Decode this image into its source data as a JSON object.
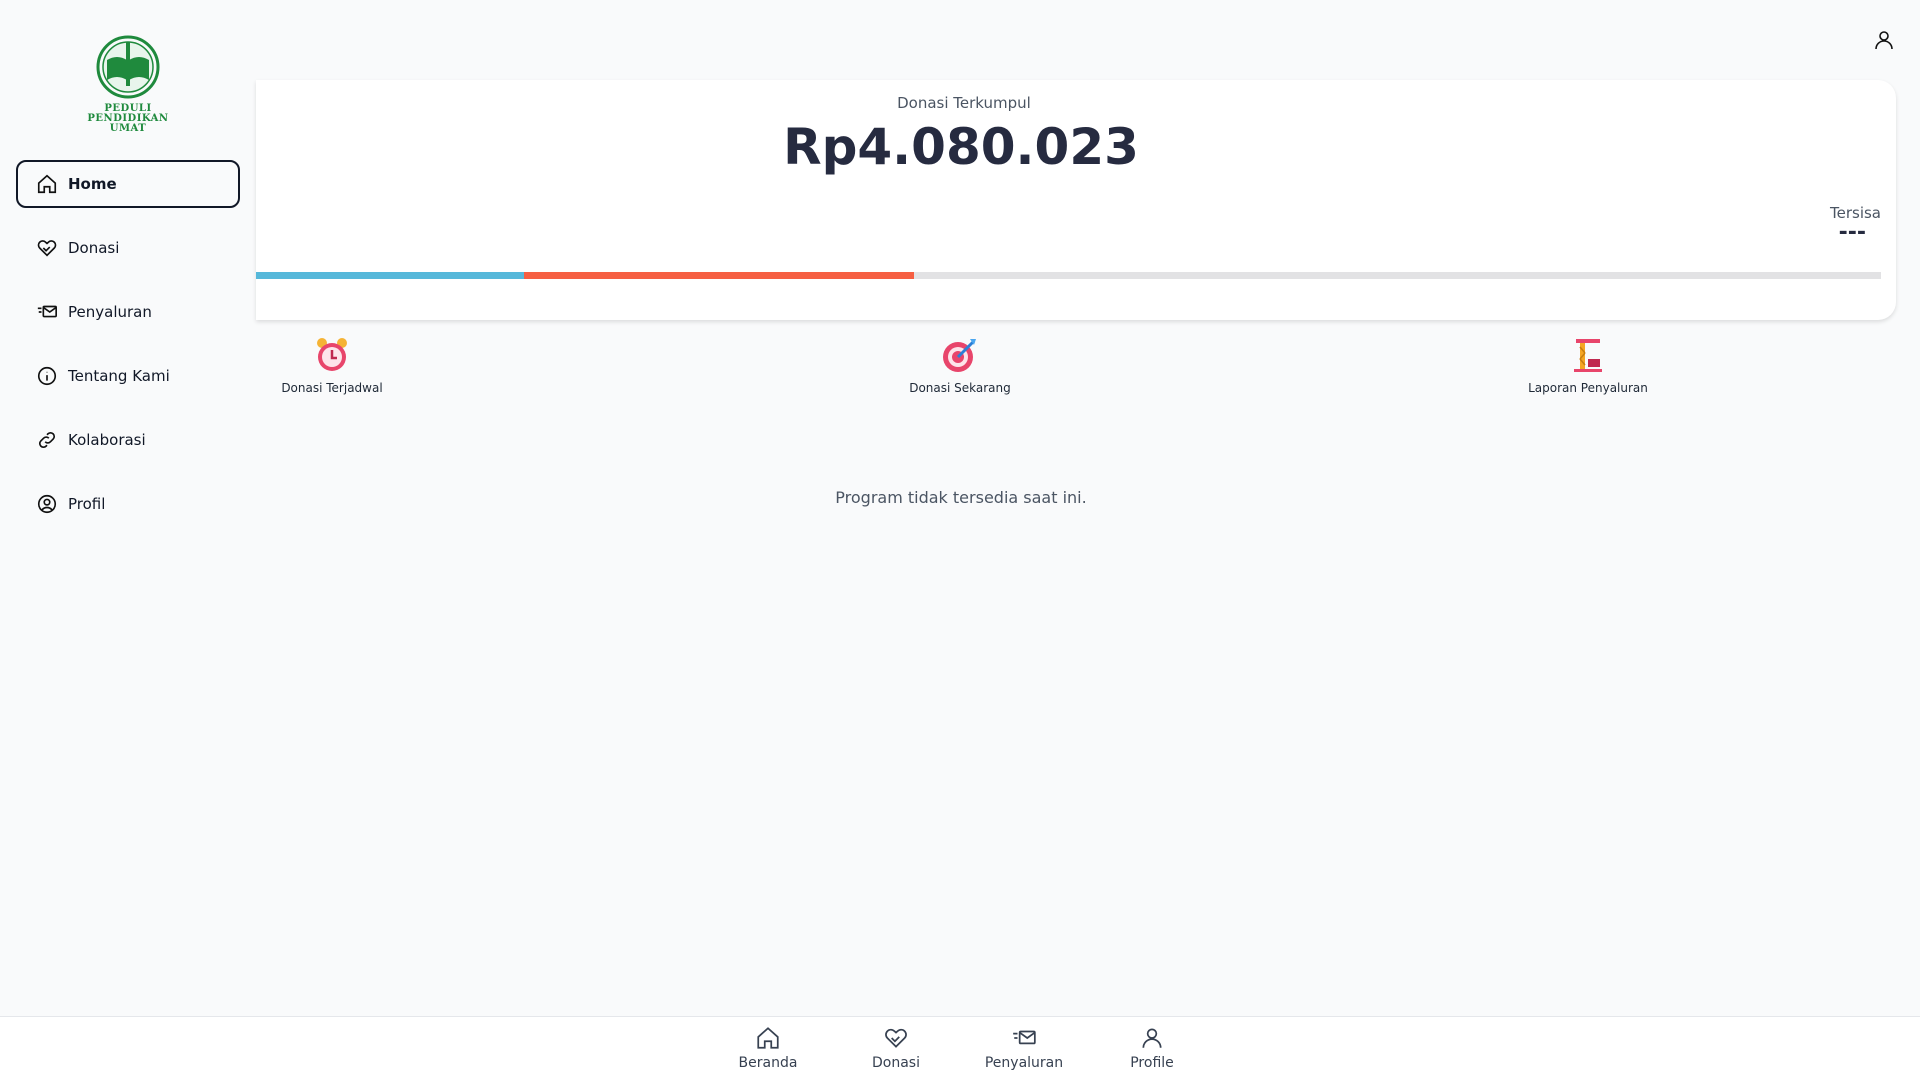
{
  "brand": {
    "logo_text": [
      "PEDULI",
      "PENDIDIKAN",
      "UMAT"
    ]
  },
  "sidebar": {
    "items": [
      {
        "label": "Home",
        "icon": "home-icon",
        "active": true
      },
      {
        "label": "Donasi",
        "icon": "heart-hand-icon"
      },
      {
        "label": "Penyaluran",
        "icon": "send-mail-icon"
      },
      {
        "label": "Tentang Kami",
        "icon": "info-icon"
      },
      {
        "label": "Kolaborasi",
        "icon": "link-icon"
      },
      {
        "label": "Profil",
        "icon": "user-circle-icon"
      }
    ]
  },
  "summary": {
    "label": "Donasi Terkumpul",
    "amount": "Rp4.080.023",
    "remaining_label": "Tersisa",
    "remaining_value": "---",
    "progress": {
      "segments": [
        {
          "percent": 16.5,
          "color": "#56b8da"
        },
        {
          "percent": 24,
          "color": "#f65f42"
        }
      ],
      "track_color": "#e2e2e4"
    }
  },
  "actions": [
    {
      "label": "Donasi Terjadwal",
      "icon": "alarm-clock-icon"
    },
    {
      "label": "Donasi Sekarang",
      "icon": "target-icon"
    },
    {
      "label": "Laporan Penyaluran",
      "icon": "crane-icon"
    }
  ],
  "empty_message": "Program tidak tersedia saat ini.",
  "bottom_nav": [
    {
      "label": "Beranda",
      "icon": "home-icon"
    },
    {
      "label": "Donasi",
      "icon": "heart-hand-icon"
    },
    {
      "label": "Penyaluran",
      "icon": "send-mail-icon"
    },
    {
      "label": "Profile",
      "icon": "user-icon"
    }
  ]
}
